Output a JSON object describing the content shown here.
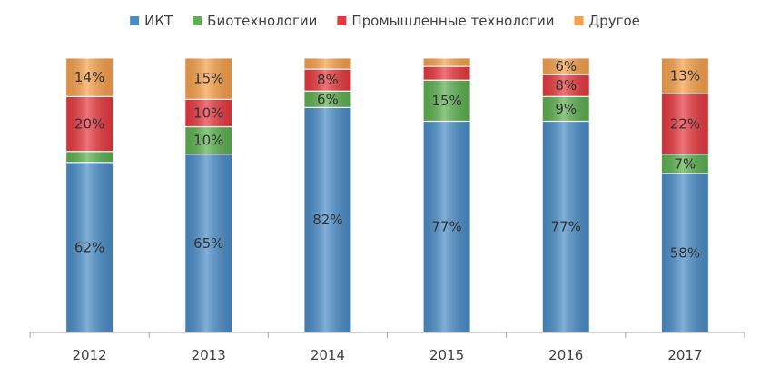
{
  "chart_data": {
    "type": "bar",
    "stacked": true,
    "percent": true,
    "categories": [
      "2012",
      "2013",
      "2014",
      "2015",
      "2016",
      "2017"
    ],
    "series": [
      {
        "name": "ИКТ",
        "color": "#4a8dc8",
        "values": [
          62,
          65,
          82,
          77,
          77,
          58
        ],
        "labels": [
          "62%",
          "65%",
          "82%",
          "77%",
          "77%",
          "58%"
        ]
      },
      {
        "name": "Биотехнологии",
        "color": "#5cb050",
        "values": [
          4,
          10,
          6,
          15,
          9,
          7
        ],
        "labels": [
          "",
          "10%",
          "6%",
          "15%",
          "9%",
          "7%"
        ]
      },
      {
        "name": "Промышленные технологии",
        "color": "#e8383e",
        "values": [
          20,
          10,
          8,
          5,
          8,
          22
        ],
        "labels": [
          "20%",
          "10%",
          "8%",
          "",
          "8%",
          "22%"
        ]
      },
      {
        "name": "Другое",
        "color": "#f7a04a",
        "values": [
          14,
          15,
          4,
          3,
          6,
          13
        ],
        "labels": [
          "14%",
          "15%",
          "",
          "",
          "6%",
          "13%"
        ]
      }
    ],
    "ylim": [
      0,
      100
    ],
    "legend_position": "top",
    "grid": false
  }
}
